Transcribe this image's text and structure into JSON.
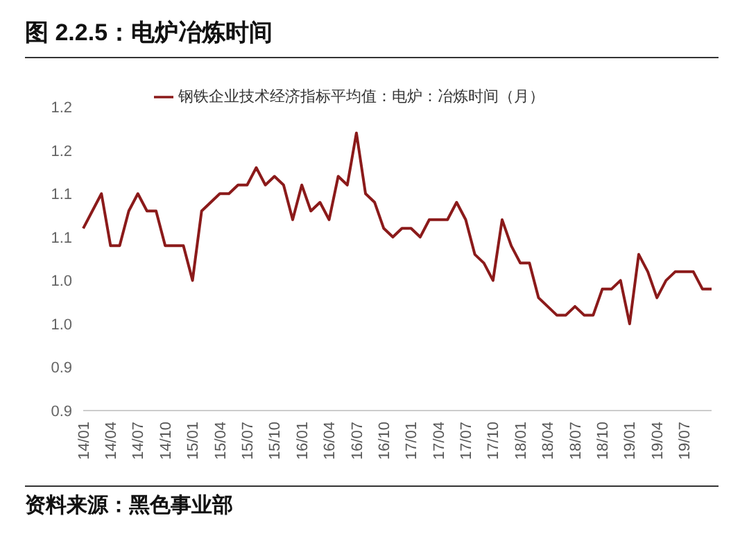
{
  "chart_data": {
    "type": "line",
    "title": "图 2.2.5：电炉冶炼时间",
    "categories": [
      "14/01",
      null,
      null,
      "14/04",
      null,
      null,
      "14/07",
      null,
      null,
      "14/10",
      null,
      null,
      "15/01",
      null,
      null,
      "15/04",
      null,
      null,
      "15/07",
      null,
      null,
      "15/10",
      null,
      null,
      "16/01",
      null,
      null,
      "16/04",
      null,
      null,
      "16/07",
      null,
      null,
      "16/10",
      null,
      null,
      "17/01",
      null,
      null,
      "17/04",
      null,
      null,
      "17/07",
      null,
      null,
      "17/10",
      null,
      null,
      "18/01",
      null,
      null,
      "18/04",
      null,
      null,
      "18/07",
      null,
      null,
      "18/10",
      null,
      null,
      "19/01",
      null,
      null,
      "19/04",
      null,
      null,
      "19/07",
      null,
      null,
      null
    ],
    "series": [
      {
        "name": "钢铁企业技术经济指标平均值：电炉：冶炼时间（月）",
        "color": "#8b1a1a",
        "values": [
          1.11,
          1.13,
          1.15,
          1.09,
          1.09,
          1.13,
          1.15,
          1.13,
          1.13,
          1.09,
          1.09,
          1.09,
          1.05,
          1.13,
          1.14,
          1.15,
          1.15,
          1.16,
          1.16,
          1.18,
          1.16,
          1.17,
          1.16,
          1.12,
          1.16,
          1.13,
          1.14,
          1.12,
          1.17,
          1.16,
          1.22,
          1.15,
          1.14,
          1.11,
          1.1,
          1.11,
          1.11,
          1.1,
          1.12,
          1.12,
          1.12,
          1.14,
          1.12,
          1.08,
          1.07,
          1.05,
          1.12,
          1.09,
          1.07,
          1.07,
          1.03,
          1.02,
          1.01,
          1.01,
          1.02,
          1.01,
          1.01,
          1.04,
          1.04,
          1.05,
          1.0,
          1.08,
          1.06,
          1.03,
          1.05,
          1.06,
          1.06,
          1.06,
          1.04,
          1.04
        ]
      }
    ],
    "ylim": [
      0.9,
      1.25
    ],
    "yticks": [
      {
        "value": 0.9,
        "label": "0.9"
      },
      {
        "value": 0.95,
        "label": "0.9"
      },
      {
        "value": 1.0,
        "label": "1.0"
      },
      {
        "value": 1.05,
        "label": "1.0"
      },
      {
        "value": 1.1,
        "label": "1.1"
      },
      {
        "value": 1.15,
        "label": "1.1"
      },
      {
        "value": 1.2,
        "label": "1.2"
      },
      {
        "value": 1.25,
        "label": "1.2"
      }
    ],
    "grid": false,
    "legend": "top",
    "marker": "none",
    "line_style": "solid",
    "annotations": [
      "资料来源：黑色事业部"
    ]
  }
}
